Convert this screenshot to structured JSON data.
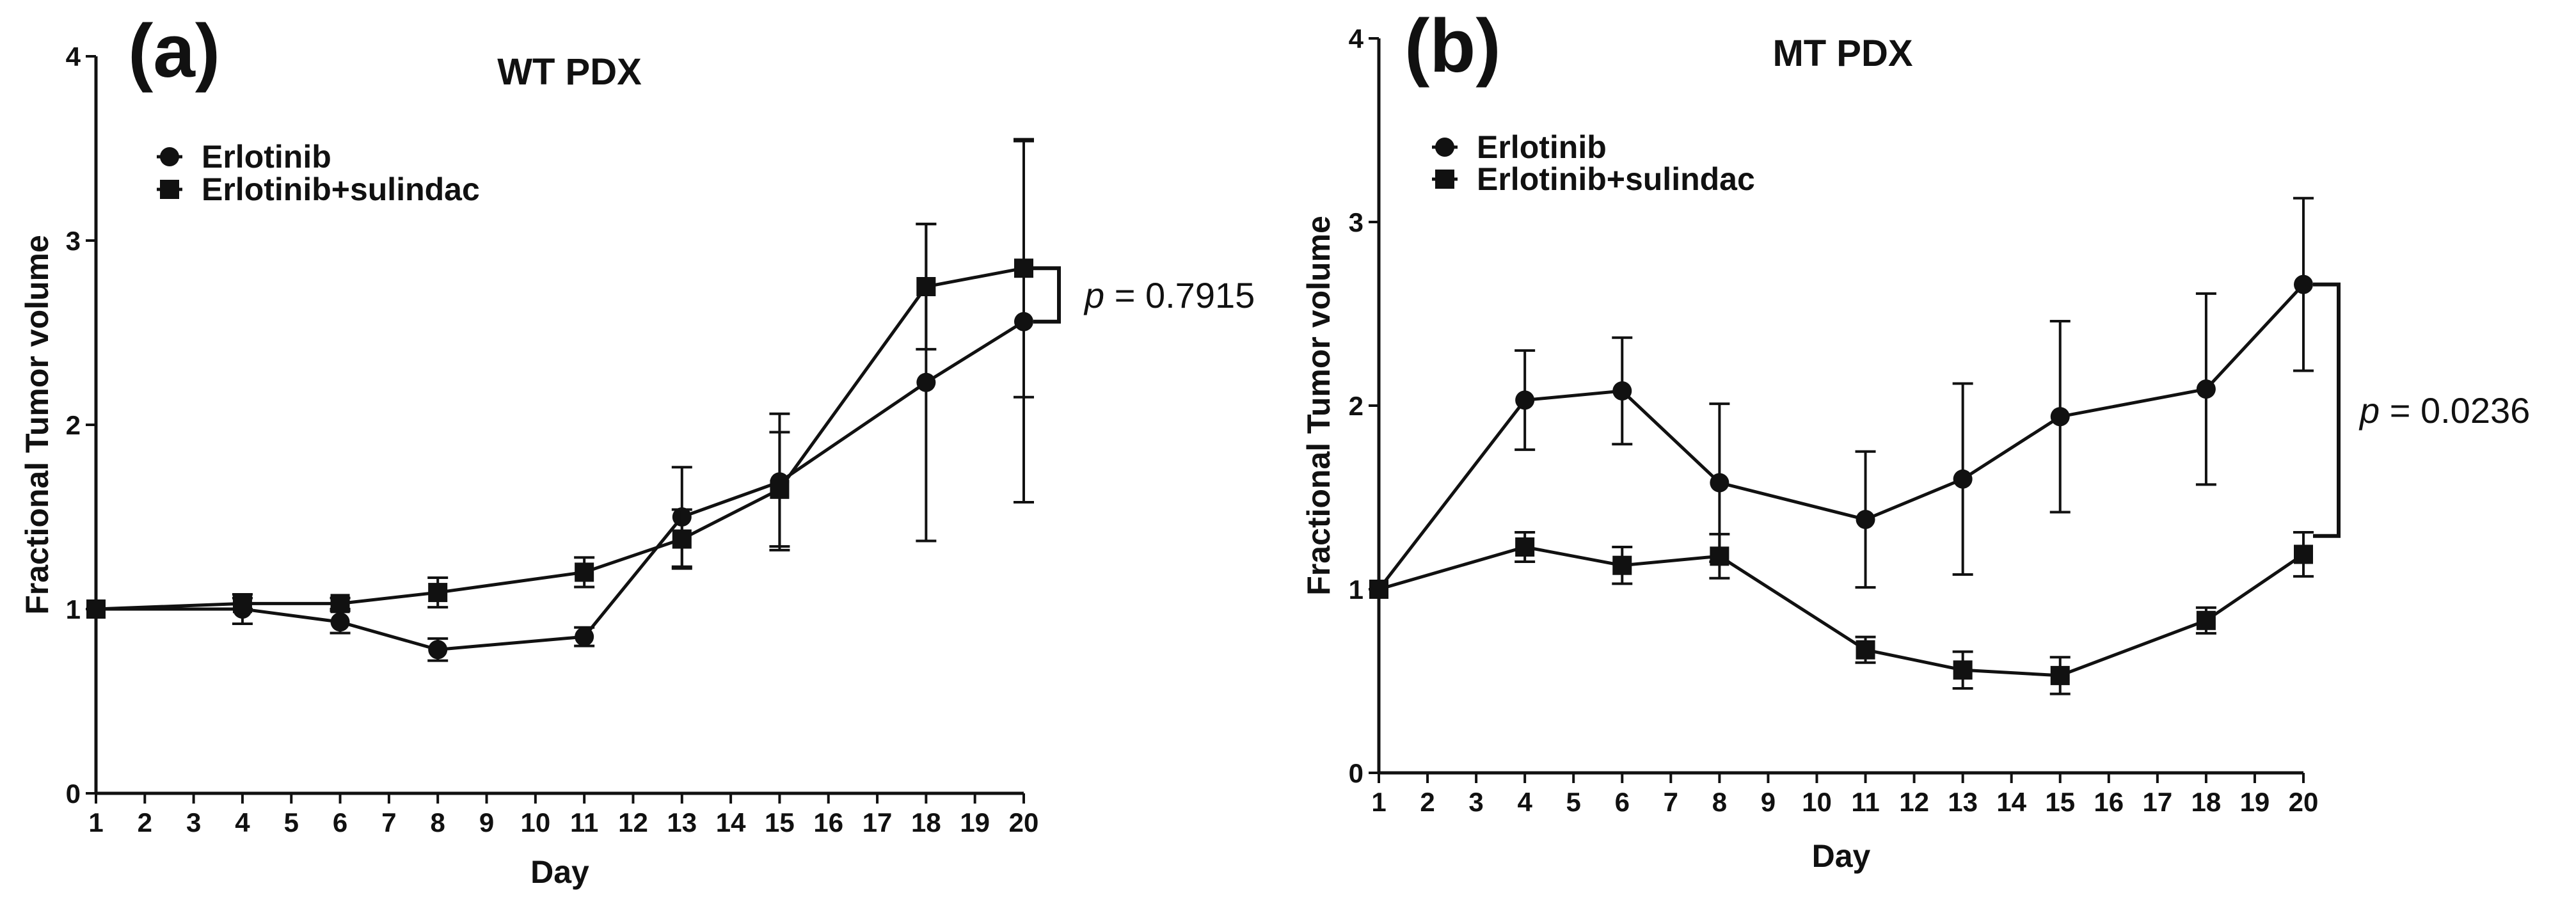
{
  "chart_data": [
    {
      "type": "line",
      "panel_label": "(a)",
      "title": "WT PDX",
      "xlabel": "Day",
      "ylabel": "Fractional Tumor volume",
      "xlim": [
        1,
        20
      ],
      "ylim": [
        0,
        4
      ],
      "x_ticks": [
        "1",
        "2",
        "3",
        "4",
        "5",
        "6",
        "7",
        "8",
        "9",
        "10",
        "11",
        "12",
        "13",
        "14",
        "15",
        "16",
        "17",
        "18",
        "19",
        "20"
      ],
      "y_ticks": [
        "0",
        "1",
        "2",
        "3",
        "4"
      ],
      "grid": false,
      "legend_position": "top-left",
      "series": [
        {
          "name": "Erlotinib",
          "marker": "circle",
          "x": [
            1,
            4,
            6,
            8,
            11,
            13,
            15,
            18,
            20
          ],
          "y": [
            1.0,
            1.0,
            0.93,
            0.78,
            0.85,
            1.5,
            1.69,
            2.23,
            2.56
          ],
          "error": [
            0,
            0.08,
            0.06,
            0.06,
            0.05,
            0.27,
            0.37,
            0.86,
            0.98
          ]
        },
        {
          "name": "Erlotinib+sulindac",
          "marker": "square",
          "x": [
            1,
            4,
            6,
            8,
            11,
            13,
            15,
            18,
            20
          ],
          "y": [
            1.0,
            1.03,
            1.03,
            1.09,
            1.2,
            1.38,
            1.65,
            2.75,
            2.85
          ],
          "error": [
            0,
            0.03,
            0.03,
            0.08,
            0.08,
            0.16,
            0.31,
            0.34,
            0.7
          ]
        }
      ],
      "annotation": {
        "prefix": "p",
        "value": " = 0.7915",
        "between_y": [
          2.56,
          2.85
        ],
        "at_x": 20
      }
    },
    {
      "type": "line",
      "panel_label": "(b)",
      "title": "MT PDX",
      "xlabel": "Day",
      "ylabel": "Fractional Tumor volume",
      "xlim": [
        1,
        20
      ],
      "ylim": [
        0,
        4
      ],
      "x_ticks": [
        "1",
        "2",
        "3",
        "4",
        "5",
        "6",
        "7",
        "8",
        "9",
        "10",
        "11",
        "12",
        "13",
        "14",
        "15",
        "16",
        "17",
        "18",
        "19",
        "20"
      ],
      "y_ticks": [
        "0",
        "1",
        "2",
        "3",
        "4"
      ],
      "grid": false,
      "legend_position": "top-left",
      "series": [
        {
          "name": "Erlotinib",
          "marker": "circle",
          "x": [
            1,
            4,
            6,
            8,
            11,
            13,
            15,
            18,
            20
          ],
          "y": [
            1.0,
            2.03,
            2.08,
            1.58,
            1.38,
            1.6,
            1.94,
            2.09,
            2.66
          ],
          "error": [
            0,
            0.27,
            0.29,
            0.43,
            0.37,
            0.52,
            0.52,
            0.52,
            0.47
          ]
        },
        {
          "name": "Erlotinib+sulindac",
          "marker": "square",
          "x": [
            1,
            4,
            6,
            8,
            11,
            13,
            15,
            18,
            20
          ],
          "y": [
            1.0,
            1.23,
            1.13,
            1.18,
            0.67,
            0.56,
            0.53,
            0.83,
            1.19
          ],
          "error": [
            0,
            0.08,
            0.1,
            0.12,
            0.07,
            0.1,
            0.1,
            0.07,
            0.12
          ]
        }
      ],
      "annotation": {
        "prefix": "p",
        "value": " = 0.0236",
        "between_y": [
          1.29,
          2.66
        ],
        "at_x": 20
      }
    }
  ]
}
